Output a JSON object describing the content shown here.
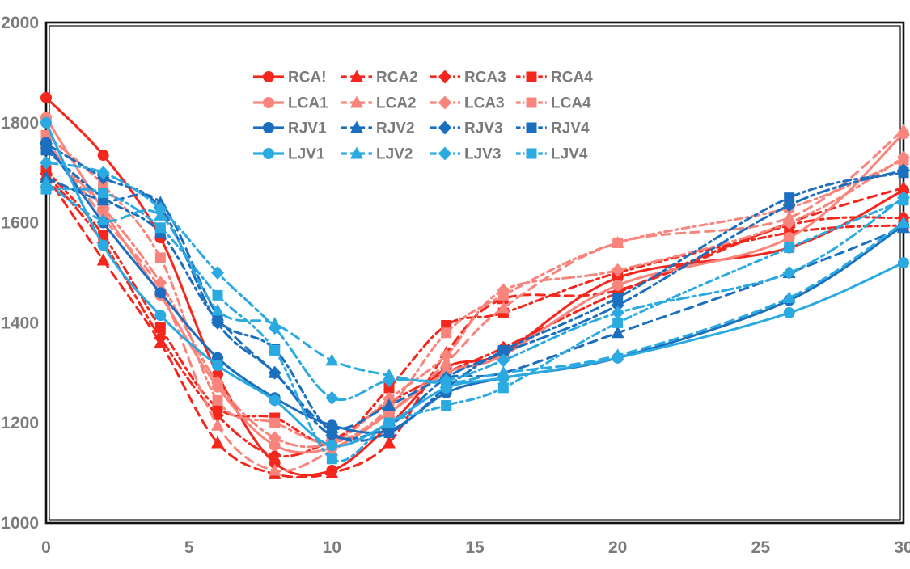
{
  "chart_data": {
    "type": "line",
    "title": "",
    "xlabel": "",
    "ylabel": "",
    "xlim": [
      0,
      30
    ],
    "ylim": [
      1000,
      2000
    ],
    "x_ticks": [
      "0",
      "5",
      "10",
      "15",
      "20",
      "25",
      "30"
    ],
    "x_tick_values": [
      0,
      5,
      10,
      15,
      20,
      25,
      30
    ],
    "y_ticks": [
      "1000",
      "1200",
      "1400",
      "1600",
      "1800",
      "2000"
    ],
    "y_tick_values": [
      1000,
      1200,
      1400,
      1600,
      1800,
      2000
    ],
    "grid": false,
    "legend_position": "top-center-inside",
    "x": [
      0,
      2,
      4,
      6,
      8,
      10,
      12,
      14,
      16,
      20,
      26,
      30
    ],
    "series": [
      {
        "name": "RCA!",
        "color": "#f5261c",
        "line": "solid",
        "marker": "circle",
        "values": [
          1850,
          1735,
          1570,
          1297,
          1120,
          1105,
          1195,
          1310,
          1340,
          1490,
          1550,
          1665
        ]
      },
      {
        "name": "RCA2",
        "color": "#f5261c",
        "line": "dashed",
        "marker": "triangle",
        "values": [
          1695,
          1525,
          1360,
          1160,
          1098,
          1100,
          1160,
          1340,
          1448,
          1465,
          1600,
          1670
        ]
      },
      {
        "name": "RCA3",
        "color": "#f5261c",
        "line": "dashdot",
        "marker": "diamond",
        "values": [
          1698,
          1560,
          1370,
          1215,
          1135,
          1165,
          1240,
          1300,
          1350,
          1460,
          1595,
          1610
        ]
      },
      {
        "name": "RCA4",
        "color": "#f5261c",
        "line": "dashdot2",
        "marker": "square",
        "values": [
          1705,
          1575,
          1390,
          1230,
          1210,
          1160,
          1270,
          1395,
          1420,
          1500,
          1580,
          1595
        ]
      },
      {
        "name": "LCA1",
        "color": "#f9847c",
        "line": "solid",
        "marker": "circle",
        "values": [
          1810,
          1625,
          1455,
          1272,
          1155,
          1150,
          1220,
          1300,
          1335,
          1475,
          1570,
          1778
        ]
      },
      {
        "name": "LCA2",
        "color": "#f9847c",
        "line": "dashed",
        "marker": "triangle",
        "values": [
          1765,
          1610,
          1465,
          1195,
          1105,
          1145,
          1220,
          1320,
          1430,
          1560,
          1610,
          1785
        ]
      },
      {
        "name": "LCA3",
        "color": "#f9847c",
        "line": "dashdot",
        "marker": "diamond",
        "values": [
          1750,
          1630,
          1480,
          1280,
          1170,
          1160,
          1248,
          1335,
          1465,
          1505,
          1600,
          1730
        ]
      },
      {
        "name": "LCA4",
        "color": "#f9847c",
        "line": "dashdot2",
        "marker": "square",
        "values": [
          1775,
          1675,
          1530,
          1245,
          1200,
          1160,
          1230,
          1380,
          1455,
          1560,
          1630,
          1725
        ]
      },
      {
        "name": "RJV1",
        "color": "#1c6fbe",
        "line": "solid",
        "marker": "circle",
        "values": [
          1760,
          1600,
          1460,
          1330,
          1250,
          1195,
          1185,
          1260,
          1290,
          1330,
          1445,
          1595
        ]
      },
      {
        "name": "RJV2",
        "color": "#1c6fbe",
        "line": "dashed",
        "marker": "triangle",
        "values": [
          1690,
          1645,
          1640,
          1415,
          1300,
          1190,
          1235,
          1290,
          1300,
          1380,
          1500,
          1590
        ]
      },
      {
        "name": "RJV3",
        "color": "#1c6fbe",
        "line": "dashdot",
        "marker": "diamond",
        "values": [
          1758,
          1690,
          1630,
          1400,
          1300,
          1175,
          1195,
          1290,
          1340,
          1435,
          1635,
          1705
        ]
      },
      {
        "name": "RJV4",
        "color": "#1c6fbe",
        "line": "dashdot2",
        "marker": "square",
        "values": [
          1745,
          1650,
          1580,
          1405,
          1347,
          1180,
          1180,
          1270,
          1345,
          1450,
          1650,
          1700
        ]
      },
      {
        "name": "LJV1",
        "color": "#2baae2",
        "line": "solid",
        "marker": "circle",
        "values": [
          1800,
          1555,
          1415,
          1315,
          1245,
          1155,
          1200,
          1270,
          1290,
          1330,
          1420,
          1520
        ]
      },
      {
        "name": "LJV2",
        "color": "#2baae2",
        "line": "dashed",
        "marker": "triangle",
        "values": [
          1680,
          1605,
          1615,
          1425,
          1398,
          1325,
          1295,
          1280,
          1300,
          1335,
          1450,
          1600
        ]
      },
      {
        "name": "LJV3",
        "color": "#2baae2",
        "line": "dashdot",
        "marker": "diamond",
        "values": [
          1720,
          1700,
          1628,
          1500,
          1390,
          1250,
          1285,
          1285,
          1325,
          1420,
          1500,
          1650
        ]
      },
      {
        "name": "LJV4",
        "color": "#2baae2",
        "line": "dashdot2",
        "marker": "square",
        "values": [
          1667,
          1660,
          1590,
          1455,
          1345,
          1128,
          1200,
          1235,
          1270,
          1400,
          1550,
          1645
        ]
      }
    ],
    "legend_labels": [
      "RCA!",
      "RCA2",
      "RCA3",
      "RCA4",
      "LCA1",
      "LCA2",
      "LCA3",
      "LCA4",
      "RJV1",
      "RJV2",
      "RJV3",
      "RJV4",
      "LJV1",
      "LJV2",
      "LJV3",
      "LJV4"
    ]
  },
  "style": {
    "axis_text_color": "#7b7b7b",
    "legend_text_color": "#7b7b7b",
    "frame_color": "#111111",
    "background": "#ffffff",
    "series_colors": {
      "red": "#f5261c",
      "salmon": "#f9847c",
      "dark_blue": "#1c6fbe",
      "light_blue": "#2baae2"
    }
  }
}
